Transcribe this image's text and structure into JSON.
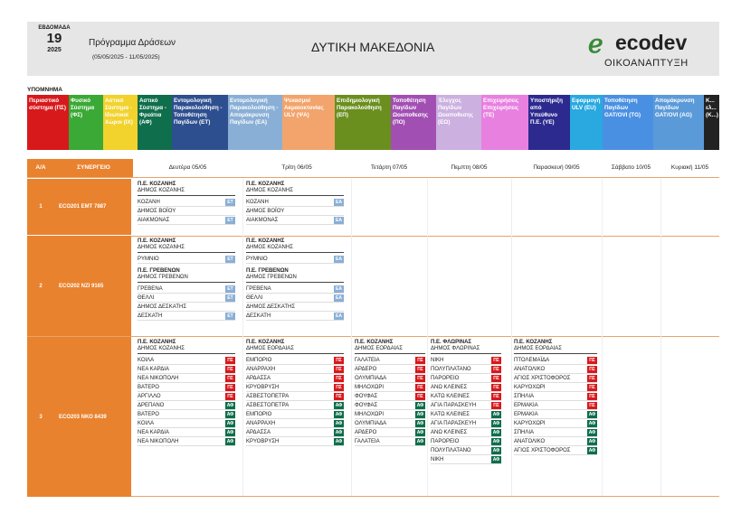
{
  "header": {
    "week_label": "ΕΒΔΟΜΑΔΑ",
    "week_number": "19",
    "year": "2025",
    "program_title": "Πρόγραμμα Δράσεων",
    "date_range": "(05/05/2025 - 11/05/2025)",
    "region": "ΔΥΤΙΚΗ ΜΑΚΕΔΟΝΙΑ",
    "logo_text": "ecodev",
    "logo_subtitle": "ΟΙΚΟΑΝΑΠΤΥΞΗ"
  },
  "legend": {
    "title": "ΥΠΟΜΝΗΜΑ",
    "items": [
      {
        "label": "Περιαστικό σύστημα (ΠΣ)",
        "color": "#d7191c",
        "w": 46
      },
      {
        "label": "Φυσικό Σύστημα (ΦΣ)",
        "color": "#3aa935",
        "w": 38
      },
      {
        "label": "Αστικό Σύστημα - Ιδιωτικοί Χώροι (ΙΧ)",
        "color": "#f2d22c",
        "w": 38
      },
      {
        "label": "Αστικό Σύστημα - Φρεάτια (ΑΦ)",
        "color": "#0f6e4c",
        "w": 38
      },
      {
        "label": "Εντομολογική Παρακολούθηση - Τοποθέτηση Παγίδων (ΕΤ)",
        "color": "#2e4f8f",
        "w": 62
      },
      {
        "label": "Εντομολογική Παρακολούθηση - Απομάκρυνση Παγίδων (ΕΑ)",
        "color": "#8aafd6",
        "w": 60
      },
      {
        "label": "Ψεκασμοί Ακμαιοκτονίας ULV (ΨΑ)",
        "color": "#f2a46c",
        "w": 58
      },
      {
        "label": "Επιδημιολογική Παρακολούθηση (ΕΠ)",
        "color": "#6a8f1e",
        "w": 62
      },
      {
        "label": "Τοποθέτηση Παγίδων Ωοαποθεσης (ΠΟ)",
        "color": "#a24fb3",
        "w": 50
      },
      {
        "label": "Έλεγχος Παγίδων Ωοαποθεσης (ΕΩ)",
        "color": "#cbb0e0",
        "w": 50
      },
      {
        "label": "Επιχειρήσεις Επιχειρήσεις (ΤΕ)",
        "color": "#e880e0",
        "w": 52
      },
      {
        "label": "Υποστήριξη από Υπεύθυνο Π.Ε. (ΥΕ)",
        "color": "#2c2a8f",
        "w": 46
      },
      {
        "label": "Εφαρμογή ULV (EU)",
        "color": "#29a9e0",
        "w": 36
      },
      {
        "label": "Τοποθέτηση Παγίδων GAT/OVI (ΤG)",
        "color": "#4a90e2",
        "w": 56
      },
      {
        "label": "Απομάκρυνση Παγίδων GAT/OVI (ΑG)",
        "color": "#5b9ad9",
        "w": 56
      },
      {
        "label": "Κ... ελ... (Κ...)",
        "color": "#222",
        "w": 17
      }
    ]
  },
  "table": {
    "header_aa": "Α/Α",
    "header_crew": "ΣΥΝΕΡΓΕΙΟ",
    "days": [
      "Δευτέρα 05/05",
      "Τρίτη 06/05",
      "Τετάρτη 07/05",
      "Πεμπτη 08/05",
      "Παρασκευή 09/05",
      "Σάββατο 10/05",
      "Κυριακή 11/05"
    ],
    "tag_colors": {
      "ΕΤ": "#8aafd6",
      "ΕΑ": "#8aafd6",
      "ΠΣ": "#d7191c",
      "ΑΦ": "#0f6e4c"
    },
    "rows": [
      {
        "aa": "1",
        "crew": "ECO201  ΕΜΤ 7887"
      },
      {
        "aa": "2",
        "crew": "ECO202  ΝΖΙ 9165"
      },
      {
        "aa": "3",
        "crew": "ECO203  ΝΚΟ 8439"
      }
    ],
    "blocks": [
      {
        "row": 0,
        "day": 0,
        "groups": [
          {
            "pe": "Π.Ε. ΚΟΖΑΝΗΣ",
            "dhmos": "ΔΗΜΟΣ ΚΟΖΑΝΗΣ",
            "items": [
              {
                "name": "ΚΟΖΑΝΗ",
                "tag": "ΕΤ"
              },
              {
                "name": "ΔΗΜΟΣ ΒΟΪΟΥ",
                "tag": ""
              },
              {
                "name": "ΑΙΑΚΜΟΝΑΣ",
                "tag": "ΕΤ"
              }
            ]
          }
        ]
      },
      {
        "row": 0,
        "day": 1,
        "groups": [
          {
            "pe": "Π.Ε. ΚΟΖΑΝΗΣ",
            "dhmos": "ΔΗΜΟΣ ΚΟΖΑΝΗΣ",
            "items": [
              {
                "name": "ΚΟΖΑΝΗ",
                "tag": "ΕΑ"
              },
              {
                "name": "ΔΗΜΟΣ ΒΟΪΟΥ",
                "tag": ""
              },
              {
                "name": "ΑΙΑΚΜΟΝΑΣ",
                "tag": "ΕΑ"
              }
            ]
          }
        ]
      },
      {
        "row": 1,
        "day": 0,
        "groups": [
          {
            "pe": "Π.Ε. ΚΟΖΑΝΗΣ",
            "dhmos": "ΔΗΜΟΣ ΚΟΖΑΝΗΣ",
            "items": [
              {
                "name": "ΡΥΜΝΙΟ",
                "tag": "ΕΤ"
              }
            ]
          },
          {
            "pe": "Π.Ε. ΓΡΕΒΕΝΩΝ",
            "dhmos": "ΔΗΜΟΣ ΓΡΕΒΕΝΩΝ",
            "items": [
              {
                "name": "ΓΡΕΒΕΝΑ",
                "tag": "ΕΤ"
              },
              {
                "name": "ΘΕΛΛΙ",
                "tag": "ΕΤ"
              },
              {
                "name": "ΔΗΜΟΣ ΔΕΣΚΑΤΗΣ",
                "tag": ""
              },
              {
                "name": "ΔΕΣΚΑΤΗ",
                "tag": "ΕΤ"
              }
            ]
          }
        ]
      },
      {
        "row": 1,
        "day": 1,
        "groups": [
          {
            "pe": "Π.Ε. ΚΟΖΑΝΗΣ",
            "dhmos": "ΔΗΜΟΣ ΚΟΖΑΝΗΣ",
            "items": [
              {
                "name": "ΡΥΜΝΙΟ",
                "tag": "ΕΑ"
              }
            ]
          },
          {
            "pe": "Π.Ε. ΓΡΕΒΕΝΩΝ",
            "dhmos": "ΔΗΜΟΣ ΓΡΕΒΕΝΩΝ",
            "items": [
              {
                "name": "ΓΡΕΒΕΝΑ",
                "tag": "ΕΑ"
              },
              {
                "name": "ΘΕΛΛΙ",
                "tag": "ΕΑ"
              },
              {
                "name": "ΔΗΜΟΣ ΔΕΣΚΑΤΗΣ",
                "tag": ""
              },
              {
                "name": "ΔΕΣΚΑΤΗ",
                "tag": "ΕΑ"
              }
            ]
          }
        ]
      },
      {
        "row": 2,
        "day": 0,
        "groups": [
          {
            "pe": "Π.Ε. ΚΟΖΑΝΗΣ",
            "dhmos": "ΔΗΜΟΣ ΚΟΖΑΝΗΣ",
            "items": [
              {
                "name": "ΚΟΙΛΑ",
                "tag": "ΠΣ"
              },
              {
                "name": "ΝΕΑ ΚΑΡΔΙΑ",
                "tag": "ΠΣ"
              },
              {
                "name": "ΝΕΑ ΝΙΚΟΠΟΛΗ",
                "tag": "ΠΣ"
              },
              {
                "name": "ΒΑΤΕΡΟ",
                "tag": "ΠΣ"
              },
              {
                "name": "ΑΡΓΙΛΛΟ",
                "tag": "ΠΣ"
              },
              {
                "name": "ΔΡΕΠΑΝΟ",
                "tag": "ΑΦ"
              },
              {
                "name": "ΒΑΤΕΡΟ",
                "tag": "ΑΦ"
              },
              {
                "name": "ΚΟΙΛΑ",
                "tag": "ΑΦ"
              },
              {
                "name": "ΝΕΑ ΚΑΡΔΙΑ",
                "tag": "ΑΦ"
              },
              {
                "name": "ΝΕΑ ΝΙΚΟΠΟΛΗ",
                "tag": "ΑΦ"
              }
            ]
          }
        ]
      },
      {
        "row": 2,
        "day": 1,
        "groups": [
          {
            "pe": "Π.Ε. ΚΟΖΑΝΗΣ",
            "dhmos": "ΔΗΜΟΣ ΕΟΡΔΑΙΑΣ",
            "items": [
              {
                "name": "ΕΜΠΟΡΙΟ",
                "tag": "ΠΣ"
              },
              {
                "name": "ΑΝΑΡΡΑΧΗ",
                "tag": "ΠΣ"
              },
              {
                "name": "ΑΡΔΑΣΣΑ",
                "tag": "ΠΣ"
              },
              {
                "name": "ΚΡΥΟΒΡΥΣΗ",
                "tag": "ΠΣ"
              },
              {
                "name": "ΑΣΒΕΣΤΟΠΕΤΡΑ",
                "tag": "ΠΣ"
              },
              {
                "name": "ΑΣΒΕΣΤΟΠΕΤΡΑ",
                "tag": "ΑΦ"
              },
              {
                "name": "ΕΜΠΟΡΙΟ",
                "tag": "ΑΦ"
              },
              {
                "name": "ΑΝΑΡΡΑΧΗ",
                "tag": "ΑΦ"
              },
              {
                "name": "ΑΡΔΑΣΣΑ",
                "tag": "ΑΦ"
              },
              {
                "name": "ΚΡΥΟΒΡΥΣΗ",
                "tag": "ΑΦ"
              }
            ]
          }
        ]
      },
      {
        "row": 2,
        "day": 2,
        "groups": [
          {
            "pe": "Π.Ε. ΚΟΖΑΝΗΣ",
            "dhmos": "ΔΗΜΟΣ ΕΟΡΔΑΙΑΣ",
            "items": [
              {
                "name": "ΓΑΛΑΤΕΙΑ",
                "tag": "ΠΣ"
              },
              {
                "name": "ΑΡΔΕΡΟ",
                "tag": "ΠΣ"
              },
              {
                "name": "ΟΛΥΜΠΙΑΔΑ",
                "tag": "ΠΣ"
              },
              {
                "name": "ΜΗΛΟΧΩΡΙ",
                "tag": "ΠΣ"
              },
              {
                "name": "ΦΟΥΦΑΣ",
                "tag": "ΠΣ"
              },
              {
                "name": "ΦΟΥΦΑΣ",
                "tag": "ΑΦ"
              },
              {
                "name": "ΜΗΛΟΧΩΡΙ",
                "tag": "ΑΦ"
              },
              {
                "name": "ΟΛΥΜΠΙΑΔΑ",
                "tag": "ΑΦ"
              },
              {
                "name": "ΑΡΔΕΡΟ",
                "tag": "ΑΦ"
              },
              {
                "name": "ΓΑΛΑΤΕΙΑ",
                "tag": "ΑΦ"
              }
            ]
          }
        ]
      },
      {
        "row": 2,
        "day": 3,
        "groups": [
          {
            "pe": "Π.Ε. ΦΛΩΡΙΝΑΣ",
            "dhmos": "ΔΗΜΟΣ ΦΛΩΡΙΝΑΣ",
            "items": [
              {
                "name": "ΝΙΚΗ",
                "tag": "ΠΣ"
              },
              {
                "name": "ΠΟΛΥΠΛΑΤΑΝΟ",
                "tag": "ΠΣ"
              },
              {
                "name": "ΠΑΡΟΡΕΙΟ",
                "tag": "ΠΣ"
              },
              {
                "name": "ΑΝΩ ΚΛΕΙΝΕΣ",
                "tag": "ΠΣ"
              },
              {
                "name": "ΚΑΤΩ ΚΛΕΙΝΕΣ",
                "tag": "ΠΣ"
              },
              {
                "name": "ΑΓΙΑ ΠΑΡΑΣΚΕΥΗ",
                "tag": "ΠΣ"
              },
              {
                "name": "ΚΑΤΩ ΚΛΕΙΝΕΣ",
                "tag": "ΑΦ"
              },
              {
                "name": "ΑΓΙΑ ΠΑΡΑΣΚΕΥΗ",
                "tag": "ΑΦ"
              },
              {
                "name": "ΑΝΩ ΚΛΕΙΝΕΣ",
                "tag": "ΑΦ"
              },
              {
                "name": "ΠΑΡΟΡΕΙΟ",
                "tag": "ΑΦ"
              },
              {
                "name": "ΠΟΛΥΠΛΑΤΑΝΟ",
                "tag": "ΑΦ"
              },
              {
                "name": "ΝΙΚΗ",
                "tag": "ΑΦ"
              }
            ]
          }
        ]
      },
      {
        "row": 2,
        "day": 4,
        "groups": [
          {
            "pe": "Π.Ε. ΚΟΖΑΝΗΣ",
            "dhmos": "ΔΗΜΟΣ ΕΟΡΔΑΙΑΣ",
            "items": [
              {
                "name": "ΠΤΟΛΕΜΑΪΔΑ",
                "tag": "ΠΣ"
              },
              {
                "name": "ΑΝΑΤΟΛΙΚΟ",
                "tag": "ΠΣ"
              },
              {
                "name": "ΑΓΙΟΣ ΧΡΙΣΤΟΦΟΡΟΣ",
                "tag": "ΠΣ"
              },
              {
                "name": "ΚΑΡΥΟΧΩΡΙ",
                "tag": "ΠΣ"
              },
              {
                "name": "ΣΠΗΛΙΑ",
                "tag": "ΠΣ"
              },
              {
                "name": "ΕΡΜΑΚΙΑ",
                "tag": "ΠΣ"
              },
              {
                "name": "ΕΡΜΑΚΙΑ",
                "tag": "ΑΦ"
              },
              {
                "name": "ΚΑΡΥΟΧΩΡΙ",
                "tag": "ΑΦ"
              },
              {
                "name": "ΣΠΗΛΙΑ",
                "tag": "ΑΦ"
              },
              {
                "name": "ΑΝΑΤΟΛΙΚΟ",
                "tag": "ΑΦ"
              },
              {
                "name": "ΑΓΙΟΣ ΧΡΙΣΤΟΦΟΡΟΣ",
                "tag": "ΑΦ"
              }
            ]
          }
        ]
      }
    ]
  }
}
